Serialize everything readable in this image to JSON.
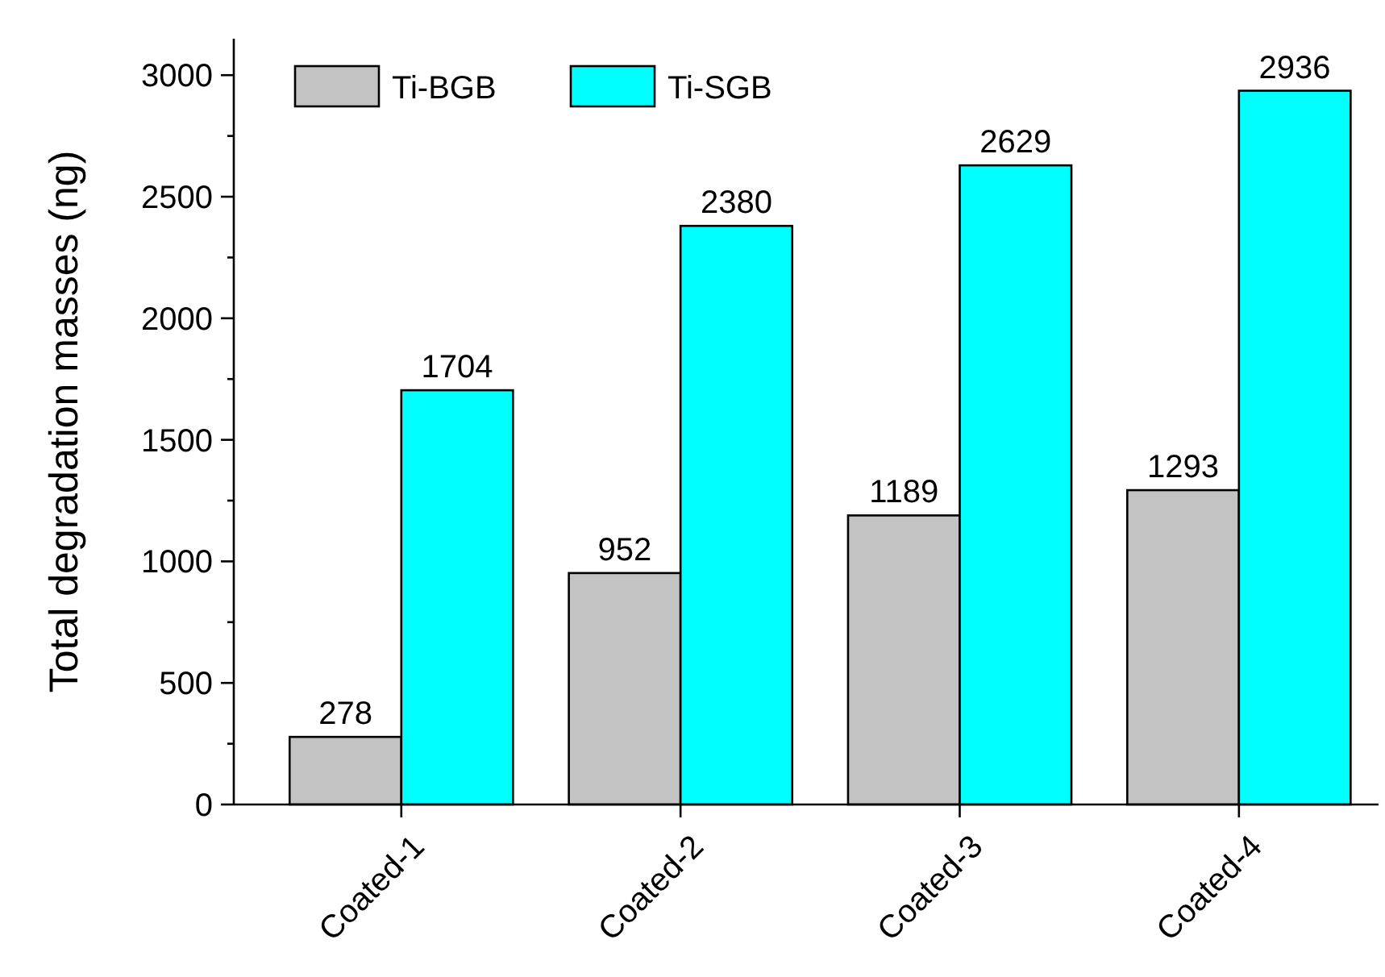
{
  "chart_data": {
    "type": "bar",
    "ylabel": "Total degradation masses (ng)",
    "categories": [
      "Coated-1",
      "Coated-2",
      "Coated-3",
      "Coated-4"
    ],
    "series": [
      {
        "name": "Ti-BGB",
        "color": "#c3c3c3",
        "values": [
          278,
          952,
          1189,
          1293
        ]
      },
      {
        "name": "Ti-SGB",
        "color": "#00ffff",
        "values": [
          1704,
          2380,
          2629,
          2936
        ]
      }
    ],
    "ylim": [
      0,
      3150
    ],
    "yticks": [
      0,
      {
        "value": 250,
        "label": null
      },
      500,
      {
        "value": 750,
        "label": null
      },
      1000,
      {
        "value": 1250,
        "label": null
      },
      1500,
      {
        "value": 1750,
        "label": null
      },
      2000,
      {
        "value": 2250,
        "label": null
      },
      2500,
      {
        "value": 2750,
        "label": null
      },
      3000
    ],
    "data_labels": true,
    "legend": "top left",
    "grid": false
  }
}
